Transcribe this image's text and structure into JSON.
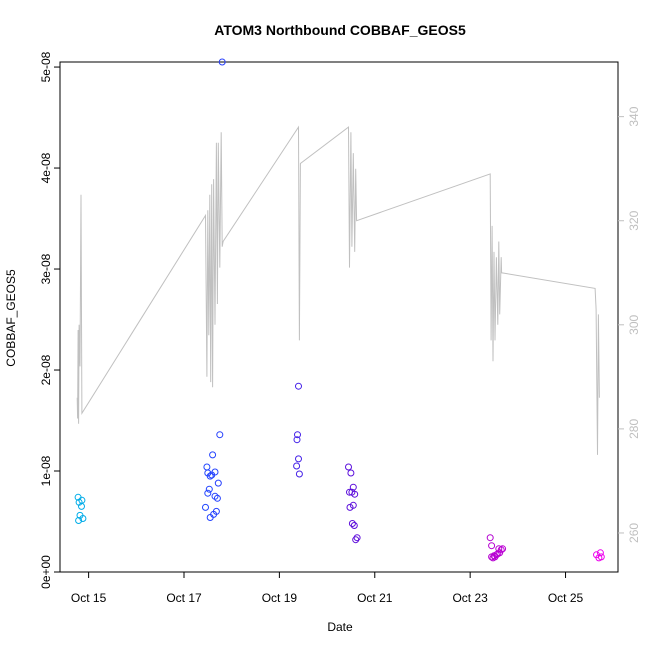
{
  "chart_data": {
    "type": "scatter",
    "title": "ATOM3 Northbound COBBAF_GEOS5",
    "xlabel": "Date",
    "ylabel": "COBBAF_GEOS5",
    "x_unit": "days (day-of-month, October)",
    "xlim": [
      14.4,
      26.1
    ],
    "ylim": [
      0,
      5.05e-08
    ],
    "x_ticks": [
      {
        "value": 15,
        "label": "Oct 15"
      },
      {
        "value": 17,
        "label": "Oct 17"
      },
      {
        "value": 19,
        "label": "Oct 19"
      },
      {
        "value": 21,
        "label": "Oct 21"
      },
      {
        "value": 23,
        "label": "Oct 23"
      },
      {
        "value": 25,
        "label": "Oct 25"
      }
    ],
    "y_ticks": [
      {
        "value": 0,
        "label": "0e+00"
      },
      {
        "value": 1e-08,
        "label": "1e-08"
      },
      {
        "value": 2e-08,
        "label": "2e-08"
      },
      {
        "value": 3e-08,
        "label": "3e-08"
      },
      {
        "value": 4e-08,
        "label": "4e-08"
      },
      {
        "value": 5e-08,
        "label": "5e-08"
      }
    ],
    "y2lim": [
      252.5,
      350.5
    ],
    "y2_ticks": [
      {
        "value": 260,
        "label": "260"
      },
      {
        "value": 280,
        "label": "280"
      },
      {
        "value": 300,
        "label": "300"
      },
      {
        "value": 320,
        "label": "320"
      },
      {
        "value": 340,
        "label": "340"
      }
    ],
    "grid": false,
    "legend": "none",
    "series": [
      {
        "type": "scatter",
        "marker": "open-circle",
        "color_gradient": [
          "#00aee8",
          "#2244ff",
          "#5511dd",
          "#aa00cc",
          "#ee00ee"
        ],
        "points": [
          {
            "x": 14.78,
            "y": 7.4e-09
          },
          {
            "x": 14.8,
            "y": 6.9e-09
          },
          {
            "x": 14.82,
            "y": 5.6e-09
          },
          {
            "x": 14.79,
            "y": 5.1e-09
          },
          {
            "x": 14.86,
            "y": 7.1e-09
          },
          {
            "x": 14.85,
            "y": 6.5e-09
          },
          {
            "x": 14.88,
            "y": 5.3e-09
          },
          {
            "x": 17.45,
            "y": 6.4e-09
          },
          {
            "x": 17.48,
            "y": 1.04e-08
          },
          {
            "x": 17.5,
            "y": 9.8e-09
          },
          {
            "x": 17.5,
            "y": 7.8e-09
          },
          {
            "x": 17.53,
            "y": 8.2e-09
          },
          {
            "x": 17.55,
            "y": 9.5e-09
          },
          {
            "x": 17.55,
            "y": 5.4e-09
          },
          {
            "x": 17.58,
            "y": 9.6e-09
          },
          {
            "x": 17.6,
            "y": 1.16e-08
          },
          {
            "x": 17.62,
            "y": 5.7e-09
          },
          {
            "x": 17.65,
            "y": 9.9e-09
          },
          {
            "x": 17.65,
            "y": 7.5e-09
          },
          {
            "x": 17.68,
            "y": 6e-09
          },
          {
            "x": 17.7,
            "y": 7.3e-09
          },
          {
            "x": 17.72,
            "y": 8.8e-09
          },
          {
            "x": 17.75,
            "y": 1.36e-08
          },
          {
            "x": 17.8,
            "y": 5.05e-08
          },
          {
            "x": 19.4,
            "y": 1.84e-08
          },
          {
            "x": 19.38,
            "y": 1.36e-08
          },
          {
            "x": 19.37,
            "y": 1.31e-08
          },
          {
            "x": 19.4,
            "y": 1.12e-08
          },
          {
            "x": 19.36,
            "y": 1.05e-08
          },
          {
            "x": 19.42,
            "y": 9.7e-09
          },
          {
            "x": 20.45,
            "y": 1.04e-08
          },
          {
            "x": 20.5,
            "y": 9.8e-09
          },
          {
            "x": 20.47,
            "y": 7.9e-09
          },
          {
            "x": 20.52,
            "y": 7.9e-09
          },
          {
            "x": 20.55,
            "y": 8.4e-09
          },
          {
            "x": 20.58,
            "y": 7.7e-09
          },
          {
            "x": 20.48,
            "y": 6.4e-09
          },
          {
            "x": 20.55,
            "y": 6.6e-09
          },
          {
            "x": 20.53,
            "y": 4.8e-09
          },
          {
            "x": 20.57,
            "y": 4.6e-09
          },
          {
            "x": 20.6,
            "y": 3.2e-09
          },
          {
            "x": 20.63,
            "y": 3.4e-09
          },
          {
            "x": 23.42,
            "y": 3.4e-09
          },
          {
            "x": 23.45,
            "y": 2.6e-09
          },
          {
            "x": 23.45,
            "y": 1.5e-09
          },
          {
            "x": 23.48,
            "y": 1.4e-09
          },
          {
            "x": 23.5,
            "y": 1.6e-09
          },
          {
            "x": 23.52,
            "y": 1.5e-09
          },
          {
            "x": 23.55,
            "y": 1.7e-09
          },
          {
            "x": 23.58,
            "y": 1.8e-09
          },
          {
            "x": 23.6,
            "y": 2.3e-09
          },
          {
            "x": 23.62,
            "y": 1.9e-09
          },
          {
            "x": 23.65,
            "y": 2.2e-09
          },
          {
            "x": 23.68,
            "y": 2.3e-09
          },
          {
            "x": 25.65,
            "y": 1.7e-09
          },
          {
            "x": 25.7,
            "y": 1.4e-09
          },
          {
            "x": 25.73,
            "y": 1.9e-09
          },
          {
            "x": 25.75,
            "y": 1.5e-09
          }
        ]
      },
      {
        "type": "line",
        "axis": "right",
        "color": "#c0c0c0",
        "points": [
          {
            "x": 14.76,
            "y": 286
          },
          {
            "x": 14.77,
            "y": 282
          },
          {
            "x": 14.78,
            "y": 299
          },
          {
            "x": 14.79,
            "y": 281
          },
          {
            "x": 14.8,
            "y": 300
          },
          {
            "x": 14.82,
            "y": 292
          },
          {
            "x": 14.84,
            "y": 325
          },
          {
            "x": 14.86,
            "y": 283
          },
          {
            "x": 17.45,
            "y": 321
          },
          {
            "x": 17.48,
            "y": 290
          },
          {
            "x": 17.5,
            "y": 322
          },
          {
            "x": 17.52,
            "y": 298
          },
          {
            "x": 17.54,
            "y": 325
          },
          {
            "x": 17.56,
            "y": 289
          },
          {
            "x": 17.58,
            "y": 327
          },
          {
            "x": 17.6,
            "y": 288
          },
          {
            "x": 17.62,
            "y": 328
          },
          {
            "x": 17.65,
            "y": 300
          },
          {
            "x": 17.68,
            "y": 335
          },
          {
            "x": 17.7,
            "y": 304
          },
          {
            "x": 17.72,
            "y": 335
          },
          {
            "x": 17.75,
            "y": 311
          },
          {
            "x": 17.78,
            "y": 337
          },
          {
            "x": 17.8,
            "y": 315
          },
          {
            "x": 17.82,
            "y": 316
          },
          {
            "x": 19.4,
            "y": 338
          },
          {
            "x": 19.42,
            "y": 297
          },
          {
            "x": 19.44,
            "y": 331
          },
          {
            "x": 20.45,
            "y": 338
          },
          {
            "x": 20.47,
            "y": 311
          },
          {
            "x": 20.5,
            "y": 337
          },
          {
            "x": 20.52,
            "y": 315
          },
          {
            "x": 20.55,
            "y": 333
          },
          {
            "x": 20.58,
            "y": 314
          },
          {
            "x": 20.6,
            "y": 330
          },
          {
            "x": 20.62,
            "y": 320
          },
          {
            "x": 23.42,
            "y": 329
          },
          {
            "x": 23.44,
            "y": 297
          },
          {
            "x": 23.46,
            "y": 319
          },
          {
            "x": 23.48,
            "y": 293
          },
          {
            "x": 23.5,
            "y": 314
          },
          {
            "x": 23.52,
            "y": 297
          },
          {
            "x": 23.55,
            "y": 313
          },
          {
            "x": 23.58,
            "y": 300
          },
          {
            "x": 23.6,
            "y": 316
          },
          {
            "x": 23.62,
            "y": 302
          },
          {
            "x": 23.65,
            "y": 313
          },
          {
            "x": 23.66,
            "y": 310
          },
          {
            "x": 25.62,
            "y": 307
          },
          {
            "x": 25.64,
            "y": 303
          },
          {
            "x": 25.67,
            "y": 275
          },
          {
            "x": 25.69,
            "y": 302
          },
          {
            "x": 25.71,
            "y": 286
          }
        ]
      }
    ]
  }
}
